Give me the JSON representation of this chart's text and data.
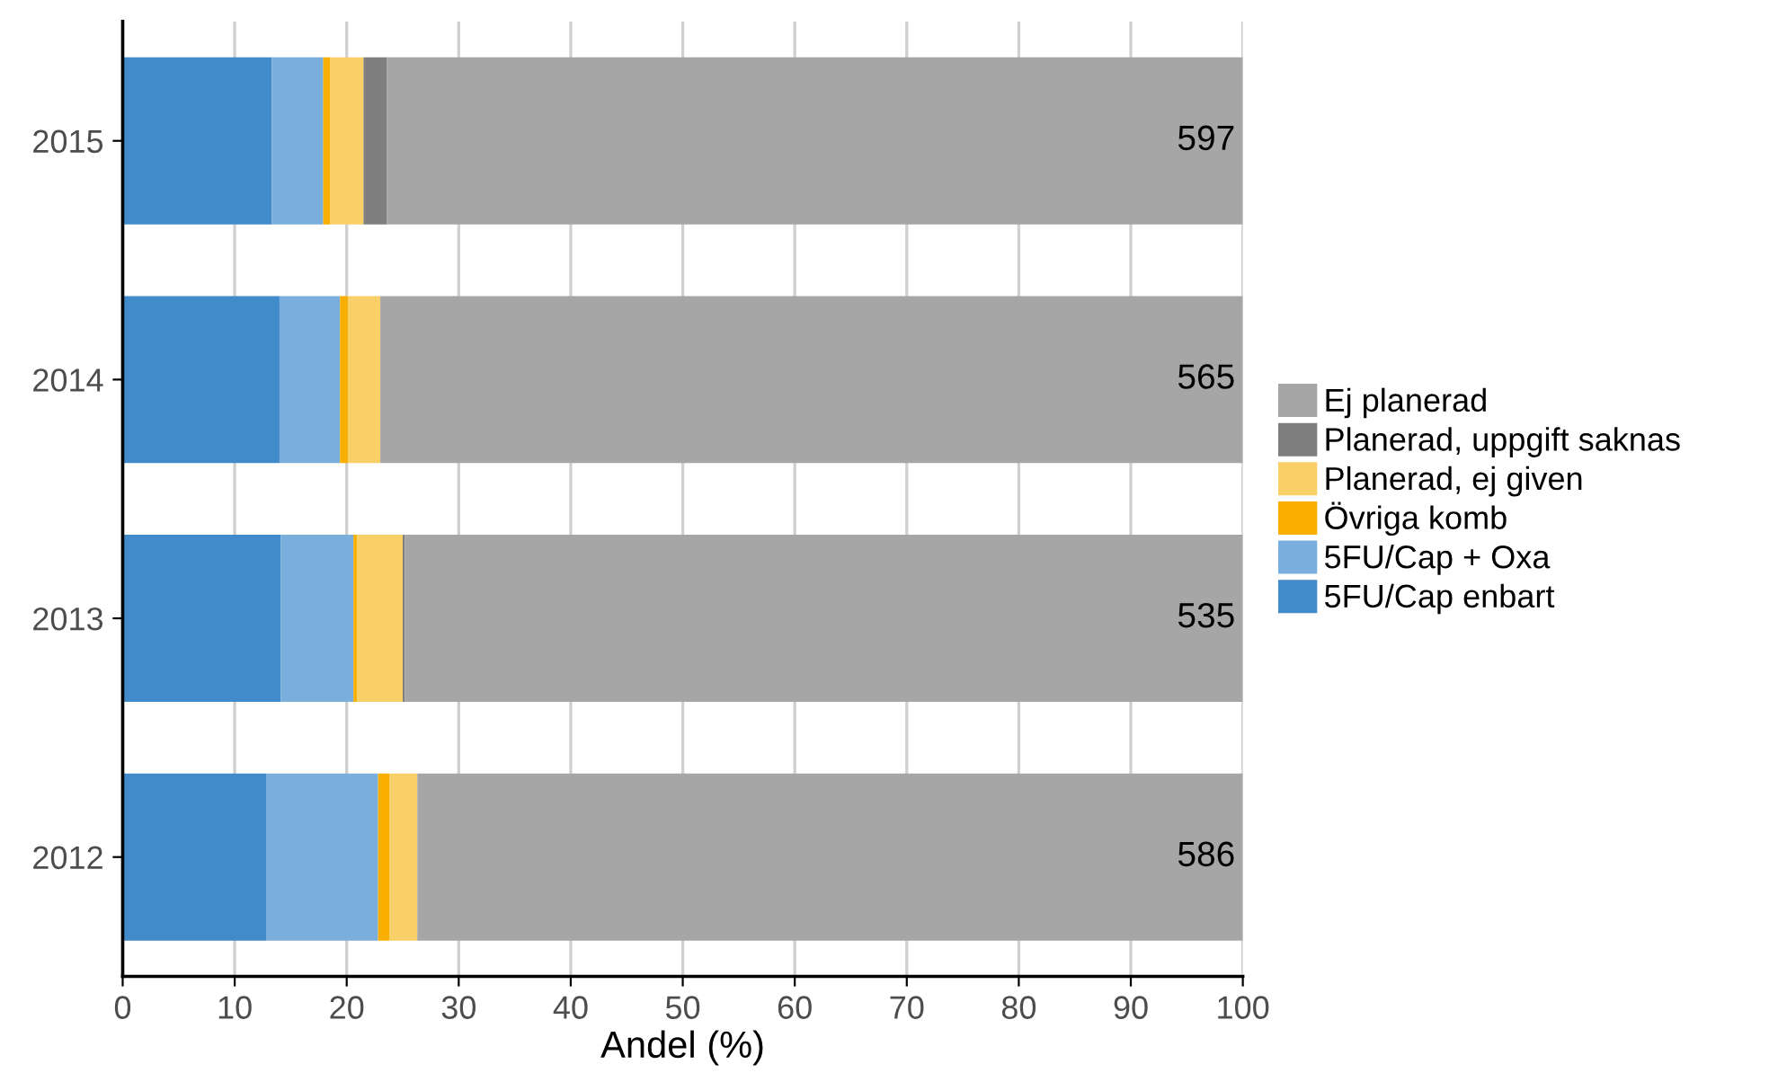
{
  "chart_data": {
    "type": "bar",
    "orientation": "horizontal",
    "stacked": true,
    "categories": [
      "2015",
      "2014",
      "2013",
      "2012"
    ],
    "series": [
      {
        "name": "5FU/Cap enbart",
        "color": "#428bca",
        "values": [
          13.3,
          14.0,
          14.1,
          12.8
        ]
      },
      {
        "name": "5FU/Cap + Oxa",
        "color": "#7aaedc",
        "values": [
          4.6,
          5.4,
          6.5,
          10.0
        ]
      },
      {
        "name": "Övriga komb",
        "color": "#f9ae00",
        "values": [
          0.6,
          0.7,
          0.3,
          1.0
        ]
      },
      {
        "name": "Planerad, ej given",
        "color": "#f9cf68",
        "values": [
          3.0,
          2.9,
          4.1,
          2.5
        ]
      },
      {
        "name": "Planerad, uppgift saknas",
        "color": "#7f7f7f",
        "values": [
          2.1,
          0,
          0.2,
          0
        ]
      },
      {
        "name": "Ej planerad",
        "color": "#a6a6a6",
        "values": [
          76.4,
          77.0,
          74.8,
          73.7
        ]
      }
    ],
    "xlabel": "Andel (%)",
    "xlim": [
      0,
      100
    ],
    "xticks": [
      0,
      10,
      20,
      30,
      40,
      50,
      60,
      70,
      80,
      90,
      100
    ],
    "grid": "x",
    "legend": "right",
    "annotations": [
      "597",
      "565",
      "535",
      "586"
    ]
  }
}
